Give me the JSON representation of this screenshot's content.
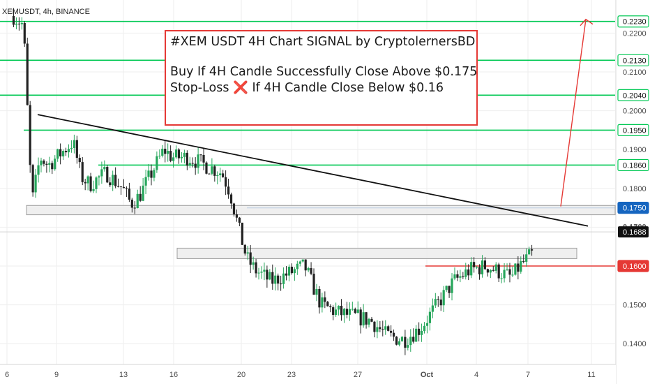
{
  "header": {
    "symbol_label": "XEMUSDT, 4h, BINANCE"
  },
  "signal_box": {
    "title": "#XEM USDT 4H Chart SIGNAL by CryptolernersBD",
    "buy_line": "Buy If 4H Candle Successfully Close Above $0.175",
    "stop_prefix": "Stop-Loss",
    "stop_icon": "❌",
    "stop_rest": "If 4H Candle Close Below $0.16"
  },
  "chart_data": {
    "type": "candlestick",
    "x_tick_labels": [
      "6",
      "9",
      "13",
      "16",
      "20",
      "23",
      "27",
      "Oct",
      "4",
      "7",
      "11"
    ],
    "y_tick_labels": [
      "0.2200",
      "0.2100",
      "0.2000",
      "0.1900",
      "0.1800",
      "0.1700",
      "0.1600",
      "0.1500",
      "0.1400"
    ],
    "ylim": [
      0.135,
      0.2255
    ],
    "current_price": "0.1688",
    "current_price_value": 0.1688,
    "partially_hidden_label": "0.1700",
    "levels": [
      {
        "value": 0.223,
        "label": "0.2230",
        "color": "#00c853",
        "kind": "target"
      },
      {
        "value": 0.213,
        "label": "0.2130",
        "color": "#00c853",
        "kind": "target"
      },
      {
        "value": 0.204,
        "label": "0.2040",
        "color": "#00c853",
        "kind": "target"
      },
      {
        "value": 0.195,
        "label": "0.1950",
        "color": "#00c853",
        "kind": "target"
      },
      {
        "value": 0.186,
        "label": "0.1860",
        "color": "#00c853",
        "kind": "target"
      },
      {
        "value": 0.175,
        "label": "0.1750",
        "color": "#1565c0",
        "kind": "breakout"
      },
      {
        "value": 0.16,
        "label": "0.1600",
        "color": "#e53935",
        "kind": "stop"
      }
    ],
    "zones": [
      {
        "from": 0.1732,
        "to": 0.1756,
        "start_date": "Sep 6",
        "end_date": "Oct 11"
      },
      {
        "from": 0.1619,
        "to": 0.1646,
        "start_date": "Sep 17",
        "end_date": "Oct 9"
      }
    ],
    "trendline": {
      "start": {
        "date": "Sep 7",
        "price": 0.199
      },
      "end": {
        "date": "Oct 10",
        "price": 0.1703
      }
    },
    "target_arrow": {
      "from_price": 0.175,
      "to_price": 0.223
    },
    "colors": {
      "up": "#26a65b",
      "down": "#222222",
      "grid": "#eeeeee"
    }
  }
}
